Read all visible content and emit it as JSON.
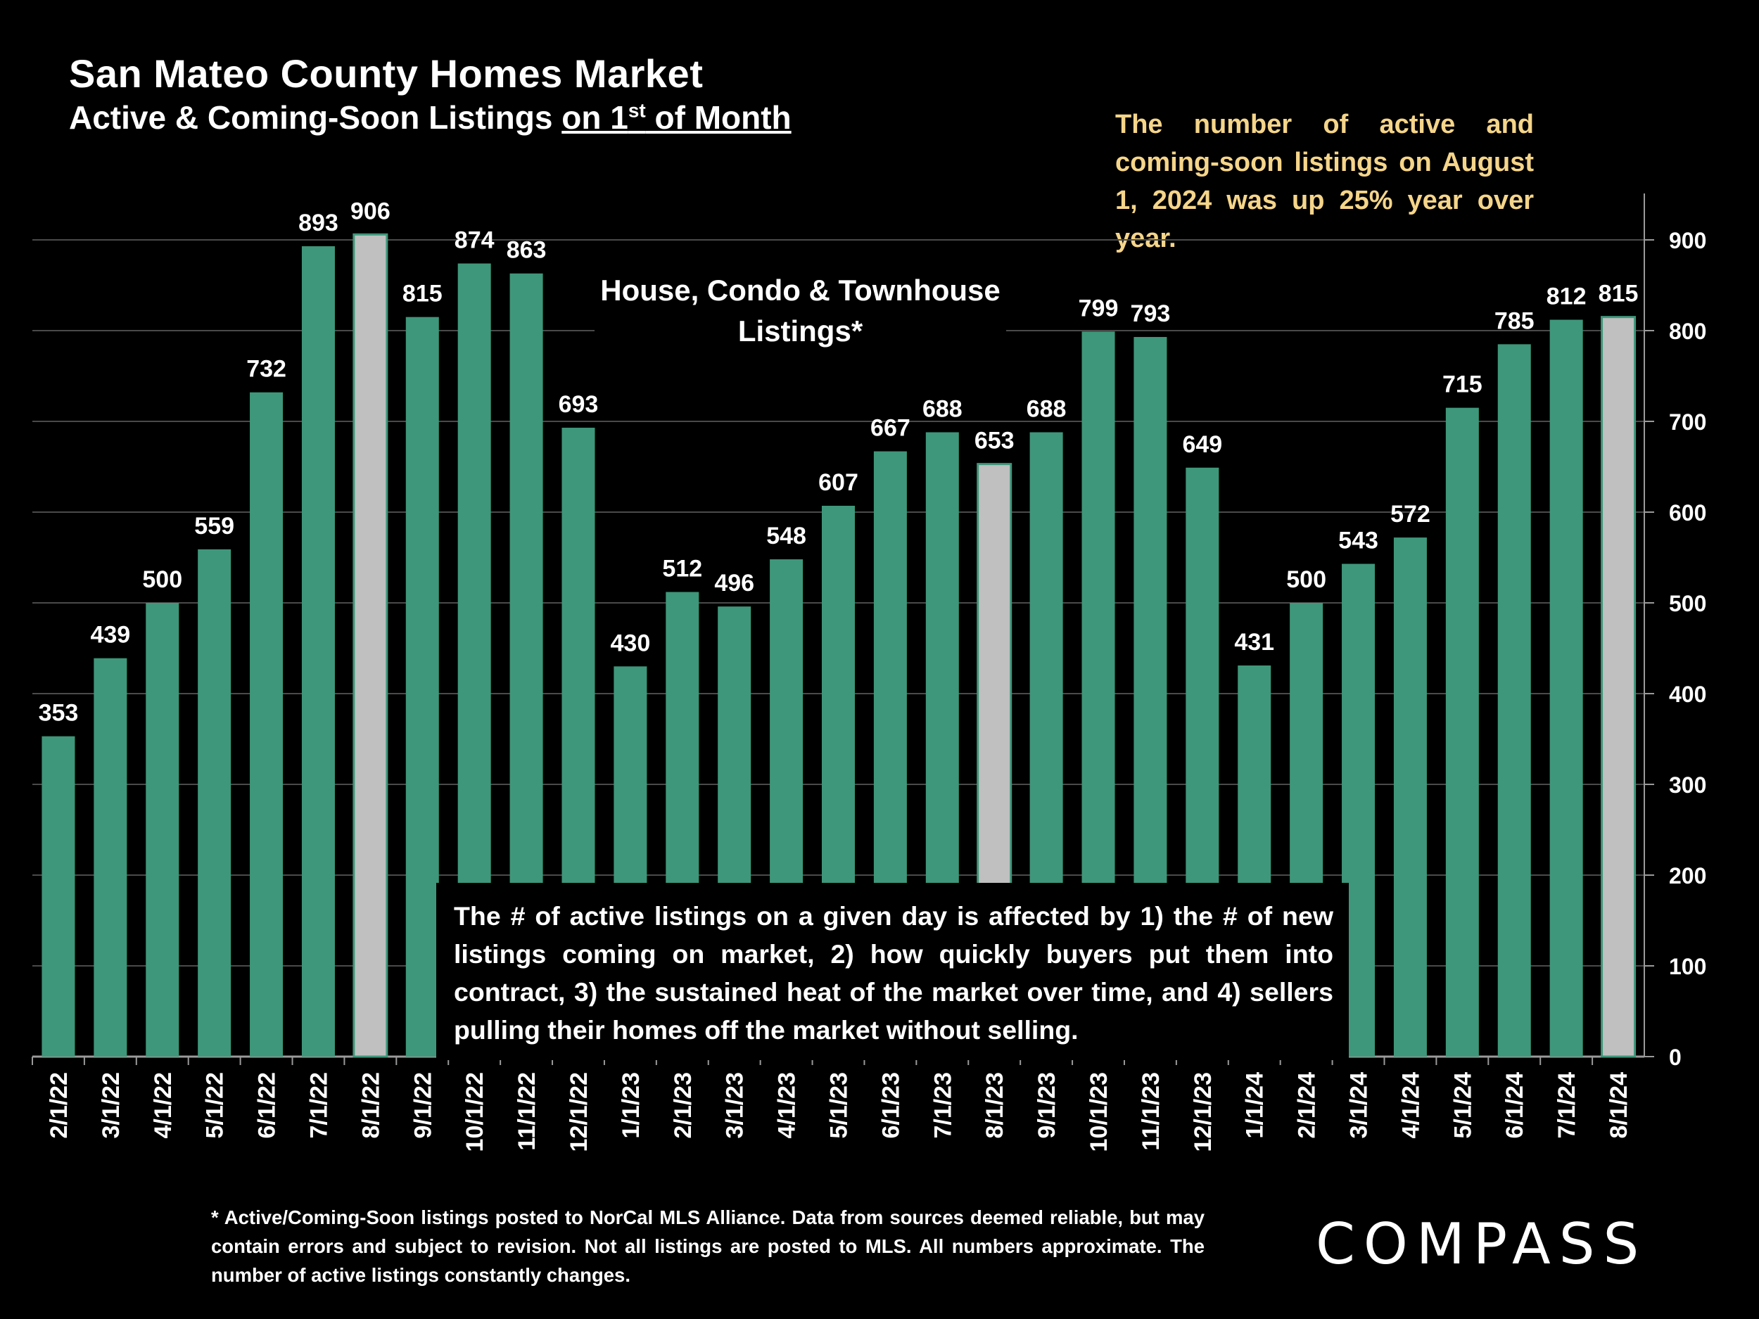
{
  "header": {
    "title": "San Mateo County Homes Market",
    "subtitle_main": "Active & Coming-Soon Listings ",
    "subtitle_u1": "on 1",
    "subtitle_sup": "st",
    "subtitle_u2": " of Month"
  },
  "annotation_yoy": "The number of active and coming-soon listings on August 1, 2024 was up 25% year over year.",
  "property_type": "House, Condo & Townhouse Listings*",
  "explanation": "The # of active listings on a given day is affected by 1) the # of new listings coming on market, 2) how quickly buyers put them into contract, 3) the sustained heat of the market over time, and 4) sellers pulling their homes off the market without selling.",
  "footnote": "* Active/Coming-Soon listings posted to NorCal MLS Alliance.  Data from sources deemed reliable, but may contain errors and subject to revision.  Not all listings are posted to MLS. All numbers approximate. The number of active listings constantly changes.",
  "logo": "COMPASS",
  "colors": {
    "bar": "#3e977a",
    "highlight": "#c0c0c0",
    "background": "#000000",
    "accent_text": "#f5d58a"
  },
  "chart_data": {
    "type": "bar",
    "title": "San Mateo County Homes Market",
    "subtitle": "Active & Coming-Soon Listings on 1st of Month",
    "categories": [
      "2/1/22",
      "3/1/22",
      "4/1/22",
      "5/1/22",
      "6/1/22",
      "7/1/22",
      "8/1/22",
      "9/1/22",
      "10/1/22",
      "11/1/22",
      "12/1/22",
      "1/1/23",
      "2/1/23",
      "3/1/23",
      "4/1/23",
      "5/1/23",
      "6/1/23",
      "7/1/23",
      "8/1/23",
      "9/1/23",
      "10/1/23",
      "11/1/23",
      "12/1/23",
      "1/1/24",
      "2/1/24",
      "3/1/24",
      "4/1/24",
      "5/1/24",
      "6/1/24",
      "7/1/24",
      "8/1/24"
    ],
    "values": [
      353,
      439,
      500,
      559,
      732,
      893,
      906,
      815,
      874,
      863,
      693,
      430,
      512,
      496,
      548,
      607,
      667,
      688,
      653,
      688,
      799,
      793,
      649,
      431,
      500,
      543,
      572,
      715,
      785,
      812,
      815
    ],
    "highlighted": [
      "8/1/22",
      "8/1/23",
      "8/1/24"
    ],
    "yticks": [
      0,
      100,
      200,
      300,
      400,
      500,
      600,
      700,
      800,
      900
    ],
    "ylim": [
      0,
      950
    ],
    "y_axis_side": "right",
    "grid": true,
    "xlabel": "",
    "ylabel": ""
  }
}
